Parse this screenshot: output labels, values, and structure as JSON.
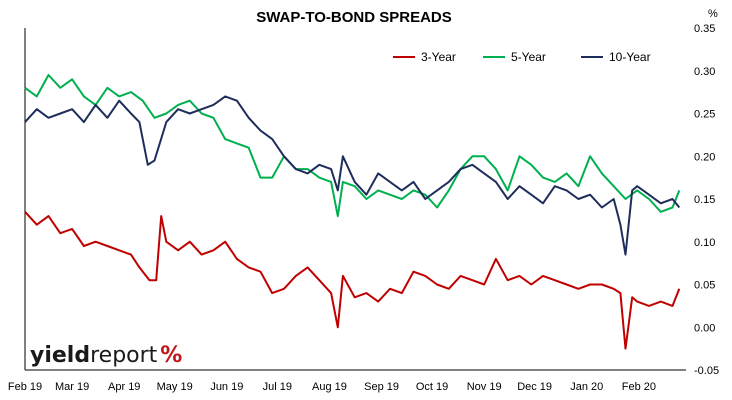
{
  "chart_data": {
    "type": "line",
    "title": "SWAP-TO-BOND SPREADS",
    "y_unit": "%",
    "ylim": [
      -0.05,
      0.35
    ],
    "yticks": [
      "0.35",
      "0.30",
      "0.25",
      "0.20",
      "0.15",
      "0.10",
      "0.05",
      "0.00",
      "-0.05"
    ],
    "ytick_values": [
      0.35,
      0.3,
      0.25,
      0.2,
      0.15,
      0.1,
      0.05,
      0.0,
      -0.05
    ],
    "xticks": [
      "Feb 19",
      "Mar 19",
      "Apr 19",
      "May 19",
      "Jun 19",
      "Jul 19",
      "Aug 19",
      "Sep 19",
      "Oct 19",
      "Nov 19",
      "Dec 19",
      "Jan 20",
      "Feb 20"
    ],
    "x_start": "2019-02-01",
    "x_end": "2020-02-29",
    "grid": false,
    "legend_position": "top-right",
    "series": [
      {
        "name": "3-Year",
        "color": "#c00000",
        "points": [
          [
            "2019-02-01",
            0.135
          ],
          [
            "2019-02-08",
            0.12
          ],
          [
            "2019-02-15",
            0.13
          ],
          [
            "2019-02-22",
            0.11
          ],
          [
            "2019-03-01",
            0.115
          ],
          [
            "2019-03-08",
            0.095
          ],
          [
            "2019-03-15",
            0.1
          ],
          [
            "2019-03-22",
            0.095
          ],
          [
            "2019-03-29",
            0.09
          ],
          [
            "2019-04-05",
            0.085
          ],
          [
            "2019-04-10",
            0.07
          ],
          [
            "2019-04-16",
            0.055
          ],
          [
            "2019-04-20",
            0.055
          ],
          [
            "2019-04-23",
            0.13
          ],
          [
            "2019-04-26",
            0.1
          ],
          [
            "2019-05-03",
            0.09
          ],
          [
            "2019-05-10",
            0.1
          ],
          [
            "2019-05-17",
            0.085
          ],
          [
            "2019-05-24",
            0.09
          ],
          [
            "2019-05-31",
            0.1
          ],
          [
            "2019-06-07",
            0.08
          ],
          [
            "2019-06-14",
            0.07
          ],
          [
            "2019-06-21",
            0.065
          ],
          [
            "2019-06-28",
            0.04
          ],
          [
            "2019-07-05",
            0.045
          ],
          [
            "2019-07-12",
            0.06
          ],
          [
            "2019-07-19",
            0.07
          ],
          [
            "2019-07-26",
            0.055
          ],
          [
            "2019-08-02",
            0.04
          ],
          [
            "2019-08-06",
            0.0
          ],
          [
            "2019-08-09",
            0.06
          ],
          [
            "2019-08-16",
            0.035
          ],
          [
            "2019-08-23",
            0.04
          ],
          [
            "2019-08-30",
            0.03
          ],
          [
            "2019-09-06",
            0.045
          ],
          [
            "2019-09-13",
            0.04
          ],
          [
            "2019-09-20",
            0.065
          ],
          [
            "2019-09-27",
            0.06
          ],
          [
            "2019-10-04",
            0.05
          ],
          [
            "2019-10-11",
            0.045
          ],
          [
            "2019-10-18",
            0.06
          ],
          [
            "2019-10-25",
            0.055
          ],
          [
            "2019-11-01",
            0.05
          ],
          [
            "2019-11-08",
            0.08
          ],
          [
            "2019-11-15",
            0.055
          ],
          [
            "2019-11-22",
            0.06
          ],
          [
            "2019-11-29",
            0.05
          ],
          [
            "2019-12-06",
            0.06
          ],
          [
            "2019-12-13",
            0.055
          ],
          [
            "2019-12-20",
            0.05
          ],
          [
            "2019-12-27",
            0.045
          ],
          [
            "2020-01-03",
            0.05
          ],
          [
            "2020-01-10",
            0.05
          ],
          [
            "2020-01-17",
            0.045
          ],
          [
            "2020-01-21",
            0.04
          ],
          [
            "2020-01-24",
            -0.025
          ],
          [
            "2020-01-28",
            0.035
          ],
          [
            "2020-01-31",
            0.03
          ],
          [
            "2020-02-07",
            0.025
          ],
          [
            "2020-02-14",
            0.03
          ],
          [
            "2020-02-21",
            0.025
          ],
          [
            "2020-02-25",
            0.045
          ]
        ]
      },
      {
        "name": "5-Year",
        "color": "#00b050",
        "points": [
          [
            "2019-02-01",
            0.28
          ],
          [
            "2019-02-08",
            0.27
          ],
          [
            "2019-02-15",
            0.295
          ],
          [
            "2019-02-22",
            0.28
          ],
          [
            "2019-03-01",
            0.29
          ],
          [
            "2019-03-08",
            0.27
          ],
          [
            "2019-03-15",
            0.26
          ],
          [
            "2019-03-22",
            0.28
          ],
          [
            "2019-03-29",
            0.27
          ],
          [
            "2019-04-05",
            0.275
          ],
          [
            "2019-04-12",
            0.265
          ],
          [
            "2019-04-19",
            0.245
          ],
          [
            "2019-04-26",
            0.25
          ],
          [
            "2019-05-03",
            0.26
          ],
          [
            "2019-05-10",
            0.265
          ],
          [
            "2019-05-17",
            0.25
          ],
          [
            "2019-05-24",
            0.245
          ],
          [
            "2019-05-31",
            0.22
          ],
          [
            "2019-06-07",
            0.215
          ],
          [
            "2019-06-14",
            0.21
          ],
          [
            "2019-06-21",
            0.175
          ],
          [
            "2019-06-28",
            0.175
          ],
          [
            "2019-07-05",
            0.2
          ],
          [
            "2019-07-12",
            0.185
          ],
          [
            "2019-07-19",
            0.185
          ],
          [
            "2019-07-26",
            0.175
          ],
          [
            "2019-08-02",
            0.17
          ],
          [
            "2019-08-06",
            0.13
          ],
          [
            "2019-08-09",
            0.17
          ],
          [
            "2019-08-16",
            0.165
          ],
          [
            "2019-08-23",
            0.15
          ],
          [
            "2019-08-30",
            0.16
          ],
          [
            "2019-09-06",
            0.155
          ],
          [
            "2019-09-13",
            0.15
          ],
          [
            "2019-09-20",
            0.16
          ],
          [
            "2019-09-27",
            0.155
          ],
          [
            "2019-10-04",
            0.14
          ],
          [
            "2019-10-11",
            0.16
          ],
          [
            "2019-10-18",
            0.185
          ],
          [
            "2019-10-25",
            0.2
          ],
          [
            "2019-11-01",
            0.2
          ],
          [
            "2019-11-08",
            0.185
          ],
          [
            "2019-11-15",
            0.16
          ],
          [
            "2019-11-22",
            0.2
          ],
          [
            "2019-11-29",
            0.19
          ],
          [
            "2019-12-06",
            0.175
          ],
          [
            "2019-12-13",
            0.17
          ],
          [
            "2019-12-20",
            0.18
          ],
          [
            "2019-12-27",
            0.165
          ],
          [
            "2020-01-03",
            0.2
          ],
          [
            "2020-01-10",
            0.18
          ],
          [
            "2020-01-17",
            0.165
          ],
          [
            "2020-01-24",
            0.15
          ],
          [
            "2020-01-31",
            0.16
          ],
          [
            "2020-02-07",
            0.15
          ],
          [
            "2020-02-14",
            0.135
          ],
          [
            "2020-02-21",
            0.14
          ],
          [
            "2020-02-25",
            0.16
          ]
        ]
      },
      {
        "name": "10-Year",
        "color": "#1f2d5c",
        "points": [
          [
            "2019-02-01",
            0.24
          ],
          [
            "2019-02-08",
            0.255
          ],
          [
            "2019-02-15",
            0.245
          ],
          [
            "2019-02-22",
            0.25
          ],
          [
            "2019-03-01",
            0.255
          ],
          [
            "2019-03-08",
            0.24
          ],
          [
            "2019-03-15",
            0.26
          ],
          [
            "2019-03-22",
            0.245
          ],
          [
            "2019-03-29",
            0.265
          ],
          [
            "2019-04-05",
            0.25
          ],
          [
            "2019-04-10",
            0.24
          ],
          [
            "2019-04-15",
            0.19
          ],
          [
            "2019-04-19",
            0.195
          ],
          [
            "2019-04-26",
            0.24
          ],
          [
            "2019-05-03",
            0.255
          ],
          [
            "2019-05-10",
            0.25
          ],
          [
            "2019-05-17",
            0.255
          ],
          [
            "2019-05-24",
            0.26
          ],
          [
            "2019-05-31",
            0.27
          ],
          [
            "2019-06-07",
            0.265
          ],
          [
            "2019-06-14",
            0.245
          ],
          [
            "2019-06-21",
            0.23
          ],
          [
            "2019-06-28",
            0.22
          ],
          [
            "2019-07-05",
            0.2
          ],
          [
            "2019-07-12",
            0.185
          ],
          [
            "2019-07-19",
            0.18
          ],
          [
            "2019-07-26",
            0.19
          ],
          [
            "2019-08-02",
            0.185
          ],
          [
            "2019-08-06",
            0.16
          ],
          [
            "2019-08-09",
            0.2
          ],
          [
            "2019-08-16",
            0.17
          ],
          [
            "2019-08-23",
            0.155
          ],
          [
            "2019-08-30",
            0.18
          ],
          [
            "2019-09-06",
            0.17
          ],
          [
            "2019-09-13",
            0.16
          ],
          [
            "2019-09-20",
            0.17
          ],
          [
            "2019-09-27",
            0.15
          ],
          [
            "2019-10-04",
            0.16
          ],
          [
            "2019-10-11",
            0.17
          ],
          [
            "2019-10-18",
            0.185
          ],
          [
            "2019-10-25",
            0.19
          ],
          [
            "2019-11-01",
            0.18
          ],
          [
            "2019-11-08",
            0.17
          ],
          [
            "2019-11-15",
            0.15
          ],
          [
            "2019-11-22",
            0.165
          ],
          [
            "2019-11-29",
            0.155
          ],
          [
            "2019-12-06",
            0.145
          ],
          [
            "2019-12-13",
            0.165
          ],
          [
            "2019-12-20",
            0.16
          ],
          [
            "2019-12-27",
            0.15
          ],
          [
            "2020-01-03",
            0.155
          ],
          [
            "2020-01-10",
            0.14
          ],
          [
            "2020-01-17",
            0.15
          ],
          [
            "2020-01-21",
            0.12
          ],
          [
            "2020-01-24",
            0.085
          ],
          [
            "2020-01-28",
            0.16
          ],
          [
            "2020-01-31",
            0.165
          ],
          [
            "2020-02-07",
            0.155
          ],
          [
            "2020-02-14",
            0.145
          ],
          [
            "2020-02-21",
            0.15
          ],
          [
            "2020-02-25",
            0.14
          ]
        ]
      }
    ]
  },
  "branding": {
    "logo_text_bold": "yield",
    "logo_text_regular": "report",
    "logo_symbol": "%"
  }
}
